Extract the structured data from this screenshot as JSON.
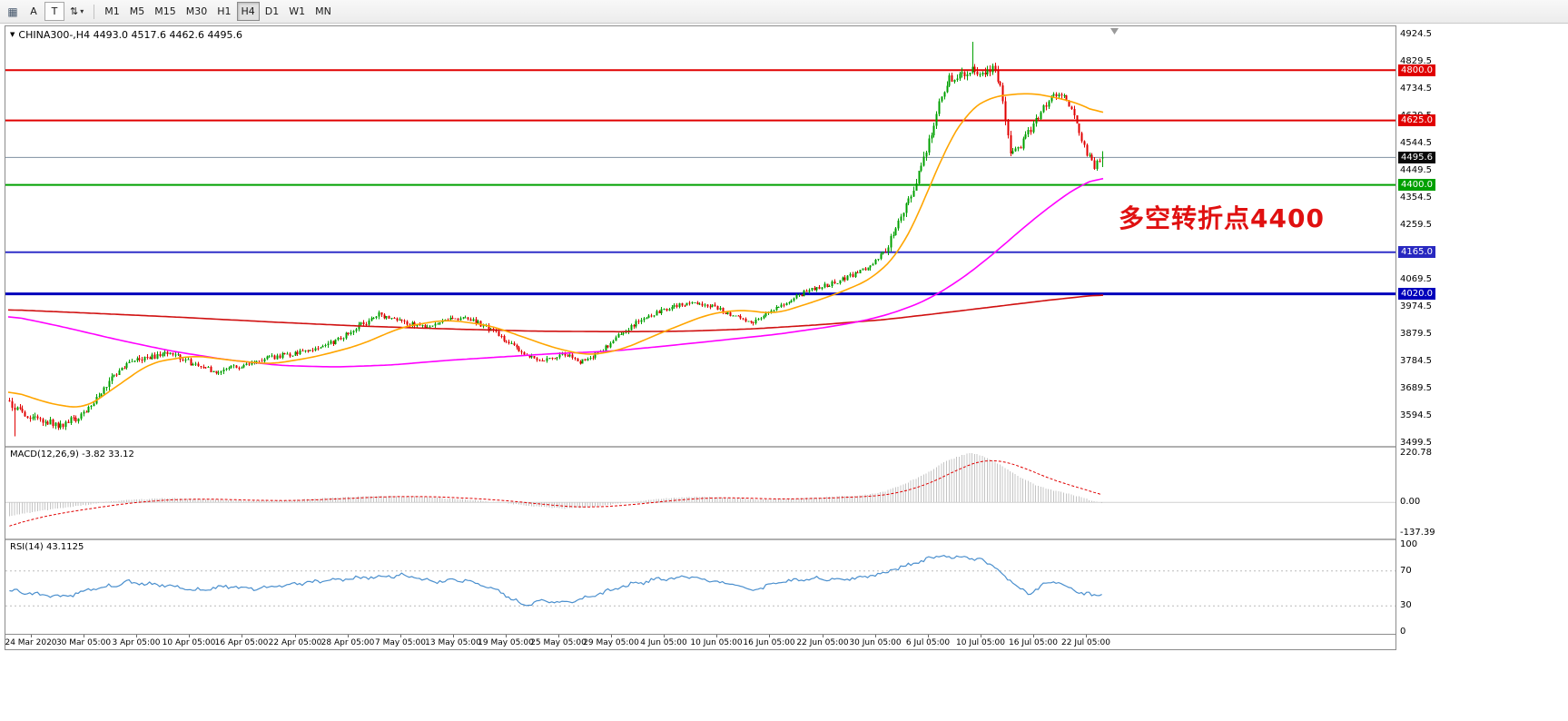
{
  "toolbar": {
    "chart_icon": "▦",
    "a_label": "A",
    "t_label": "T",
    "cycle_icon": "⇅",
    "chevron": "▾",
    "timeframes": [
      "M1",
      "M5",
      "M15",
      "M30",
      "H1",
      "H4",
      "D1",
      "W1",
      "MN"
    ],
    "active_timeframe": "H4"
  },
  "chart": {
    "collapse_arrow": "▼",
    "title": "CHINA300-,H4 4493.0 4517.6 4462.6 4495.6"
  },
  "chart_data": {
    "type": "candlestick",
    "symbol": "CHINA300-",
    "timeframe": "H4",
    "ohlc_current": {
      "open": 4493.0,
      "high": 4517.6,
      "low": 4462.6,
      "close": 4495.6
    },
    "candle_count": 430,
    "colors": {
      "up": "#00A000",
      "down": "#E00000",
      "ma_fast": "#FFA500",
      "ma_mid": "#FF00FF",
      "ma_slow": "#D01010",
      "macd_bar": "#c4c4c4",
      "macd_signal": "#e00000",
      "rsi_line": "#4a8fce"
    },
    "y_axis": {
      "max": 4924.5,
      "min": 3499.5,
      "tick_step": 95,
      "ticks": [
        4924.5,
        4829.5,
        4734.5,
        4639.5,
        4544.5,
        4449.5,
        4354.5,
        4259.5,
        4164.5,
        4069.5,
        3974.5,
        3879.5,
        3784.5,
        3689.5,
        3594.5,
        3499.5
      ]
    },
    "x_labels": [
      "24 Mar 2020",
      "30 Mar 05:00",
      "3 Apr 05:00",
      "10 Apr 05:00",
      "16 Apr 05:00",
      "22 Apr 05:00",
      "28 Apr 05:00",
      "7 May 05:00",
      "13 May 05:00",
      "19 May 05:00",
      "25 May 05:00",
      "29 May 05:00",
      "4 Jun 05:00",
      "10 Jun 05:00",
      "16 Jun 05:00",
      "22 Jun 05:00",
      "30 Jun 05:00",
      "6 Jul 05:00",
      "10 Jul 05:00",
      "16 Jul 05:00",
      "22 Jul 05:00"
    ],
    "levels": [
      {
        "price": 4800.0,
        "label": "4800.0",
        "color": "#e00000",
        "badge": "#e00000",
        "width": 2
      },
      {
        "price": 4625.0,
        "label": "4625.0",
        "color": "#e00000",
        "badge": "#e00000",
        "width": 2
      },
      {
        "price": 4495.6,
        "label": "4495.6",
        "color": "#7f8fa0",
        "badge": "#0a0a0a",
        "width": 1
      },
      {
        "price": 4400.0,
        "label": "4400.0",
        "color": "#00a000",
        "badge": "#00a000",
        "width": 2
      },
      {
        "price": 4165.0,
        "label": "4165.0",
        "color": "#3030c8",
        "badge": "#2828c0",
        "width": 2
      },
      {
        "price": 4020.0,
        "label": "4020.0",
        "color": "#0000bb",
        "badge": "#0000bb",
        "width": 3
      }
    ],
    "annotation": {
      "text": "多空转折点4400",
      "color": "#e01010"
    },
    "price_path_anchors": [
      [
        0.0,
        3648,
        26
      ],
      [
        0.012,
        3610,
        26
      ],
      [
        0.03,
        3585,
        26
      ],
      [
        0.048,
        3560,
        24
      ],
      [
        0.065,
        3590,
        22
      ],
      [
        0.08,
        3645,
        22
      ],
      [
        0.095,
        3720,
        22
      ],
      [
        0.11,
        3785,
        20
      ],
      [
        0.13,
        3800,
        18
      ],
      [
        0.15,
        3815,
        18
      ],
      [
        0.17,
        3775,
        18
      ],
      [
        0.19,
        3750,
        18
      ],
      [
        0.21,
        3765,
        16
      ],
      [
        0.23,
        3788,
        16
      ],
      [
        0.255,
        3808,
        16
      ],
      [
        0.28,
        3822,
        16
      ],
      [
        0.3,
        3855,
        18
      ],
      [
        0.32,
        3905,
        18
      ],
      [
        0.34,
        3948,
        18
      ],
      [
        0.36,
        3925,
        16
      ],
      [
        0.38,
        3905,
        16
      ],
      [
        0.4,
        3928,
        14
      ],
      [
        0.42,
        3938,
        14
      ],
      [
        0.44,
        3898,
        16
      ],
      [
        0.458,
        3852,
        16
      ],
      [
        0.475,
        3805,
        16
      ],
      [
        0.492,
        3788,
        14
      ],
      [
        0.508,
        3815,
        14
      ],
      [
        0.522,
        3782,
        14
      ],
      [
        0.54,
        3812,
        14
      ],
      [
        0.558,
        3872,
        16
      ],
      [
        0.575,
        3920,
        16
      ],
      [
        0.592,
        3952,
        14
      ],
      [
        0.61,
        3978,
        14
      ],
      [
        0.628,
        3992,
        14
      ],
      [
        0.645,
        3975,
        14
      ],
      [
        0.662,
        3945,
        14
      ],
      [
        0.68,
        3918,
        14
      ],
      [
        0.698,
        3962,
        14
      ],
      [
        0.715,
        3998,
        14
      ],
      [
        0.732,
        4032,
        16
      ],
      [
        0.75,
        4052,
        16
      ],
      [
        0.768,
        4078,
        16
      ],
      [
        0.785,
        4112,
        18
      ],
      [
        0.8,
        4158,
        22
      ],
      [
        0.812,
        4248,
        30
      ],
      [
        0.825,
        4368,
        32
      ],
      [
        0.838,
        4492,
        34
      ],
      [
        0.85,
        4668,
        34
      ],
      [
        0.86,
        4768,
        30
      ],
      [
        0.872,
        4788,
        32
      ],
      [
        0.882,
        4802,
        34
      ],
      [
        0.892,
        4772,
        32
      ],
      [
        0.9,
        4822,
        30
      ],
      [
        0.908,
        4732,
        32
      ],
      [
        0.916,
        4522,
        30
      ],
      [
        0.924,
        4528,
        26
      ],
      [
        0.934,
        4588,
        24
      ],
      [
        0.944,
        4655,
        24
      ],
      [
        0.953,
        4705,
        22
      ],
      [
        0.962,
        4718,
        22
      ],
      [
        0.97,
        4682,
        24
      ],
      [
        0.978,
        4598,
        24
      ],
      [
        0.986,
        4512,
        22
      ],
      [
        0.993,
        4465,
        20
      ],
      [
        1.0,
        4495.6,
        18
      ]
    ],
    "spikes": [
      {
        "t": 0.879,
        "high": 4899
      },
      {
        "t": 0.005,
        "low": 3524
      }
    ],
    "ma_fast": {
      "points": [
        [
          0.0,
          3685
        ],
        [
          0.04,
          3635
        ],
        [
          0.07,
          3620
        ],
        [
          0.1,
          3700
        ],
        [
          0.13,
          3780
        ],
        [
          0.17,
          3805
        ],
        [
          0.2,
          3790
        ],
        [
          0.24,
          3775
        ],
        [
          0.28,
          3800
        ],
        [
          0.32,
          3840
        ],
        [
          0.36,
          3905
        ],
        [
          0.4,
          3930
        ],
        [
          0.44,
          3910
        ],
        [
          0.47,
          3870
        ],
        [
          0.5,
          3830
        ],
        [
          0.53,
          3805
        ],
        [
          0.56,
          3825
        ],
        [
          0.6,
          3890
        ],
        [
          0.64,
          3950
        ],
        [
          0.67,
          3965
        ],
        [
          0.7,
          3950
        ],
        [
          0.73,
          3985
        ],
        [
          0.76,
          4025
        ],
        [
          0.79,
          4075
        ],
        [
          0.815,
          4170
        ],
        [
          0.835,
          4330
        ],
        [
          0.855,
          4520
        ],
        [
          0.875,
          4650
        ],
        [
          0.895,
          4705
        ],
        [
          0.915,
          4715
        ],
        [
          0.93,
          4720
        ],
        [
          0.945,
          4715
        ],
        [
          0.96,
          4700
        ],
        [
          0.975,
          4690
        ],
        [
          0.99,
          4660
        ],
        [
          1.0,
          4642
        ]
      ]
    },
    "ma_mid": {
      "points": [
        [
          0.0,
          3945
        ],
        [
          0.05,
          3905
        ],
        [
          0.1,
          3860
        ],
        [
          0.15,
          3820
        ],
        [
          0.2,
          3790
        ],
        [
          0.25,
          3770
        ],
        [
          0.3,
          3765
        ],
        [
          0.35,
          3772
        ],
        [
          0.4,
          3788
        ],
        [
          0.45,
          3800
        ],
        [
          0.5,
          3812
        ],
        [
          0.55,
          3820
        ],
        [
          0.6,
          3838
        ],
        [
          0.65,
          3858
        ],
        [
          0.7,
          3878
        ],
        [
          0.75,
          3905
        ],
        [
          0.78,
          3925
        ],
        [
          0.81,
          3955
        ],
        [
          0.84,
          4000
        ],
        [
          0.87,
          4070
        ],
        [
          0.9,
          4160
        ],
        [
          0.93,
          4260
        ],
        [
          0.96,
          4350
        ],
        [
          0.98,
          4400
        ],
        [
          1.0,
          4432
        ]
      ]
    },
    "ma_slow": {
      "points": [
        [
          0.0,
          3965
        ],
        [
          0.08,
          3952
        ],
        [
          0.16,
          3938
        ],
        [
          0.24,
          3922
        ],
        [
          0.32,
          3908
        ],
        [
          0.4,
          3898
        ],
        [
          0.48,
          3890
        ],
        [
          0.56,
          3888
        ],
        [
          0.62,
          3890
        ],
        [
          0.68,
          3898
        ],
        [
          0.74,
          3912
        ],
        [
          0.8,
          3930
        ],
        [
          0.85,
          3952
        ],
        [
          0.9,
          3975
        ],
        [
          0.95,
          3998
        ],
        [
          1.0,
          4018
        ]
      ]
    },
    "macd": {
      "label": "MACD(12,26,9) -3.82 33.12",
      "main_last": -3.82,
      "signal_last": 33.12,
      "range": {
        "max": 220.78,
        "min": -137.39
      },
      "ticks": [
        "220.78",
        "0.00",
        "-137.39"
      ],
      "signal_seed": -110,
      "signal_alpha": 0.08,
      "main_anchors": [
        [
          0.0,
          -62
        ],
        [
          0.02,
          -45
        ],
        [
          0.04,
          -30
        ],
        [
          0.07,
          -12
        ],
        [
          0.1,
          8
        ],
        [
          0.14,
          18
        ],
        [
          0.18,
          14
        ],
        [
          0.22,
          6
        ],
        [
          0.26,
          10
        ],
        [
          0.3,
          22
        ],
        [
          0.34,
          30
        ],
        [
          0.38,
          24
        ],
        [
          0.42,
          12
        ],
        [
          0.45,
          0
        ],
        [
          0.48,
          -18
        ],
        [
          0.51,
          -28
        ],
        [
          0.54,
          -16
        ],
        [
          0.57,
          2
        ],
        [
          0.6,
          18
        ],
        [
          0.63,
          26
        ],
        [
          0.66,
          20
        ],
        [
          0.69,
          12
        ],
        [
          0.72,
          18
        ],
        [
          0.75,
          24
        ],
        [
          0.78,
          32
        ],
        [
          0.8,
          48
        ],
        [
          0.82,
          85
        ],
        [
          0.84,
          135
        ],
        [
          0.855,
          180
        ],
        [
          0.87,
          210
        ],
        [
          0.878,
          221
        ],
        [
          0.888,
          212
        ],
        [
          0.9,
          185
        ],
        [
          0.912,
          150
        ],
        [
          0.925,
          110
        ],
        [
          0.94,
          75
        ],
        [
          0.95,
          58
        ],
        [
          0.96,
          48
        ],
        [
          0.97,
          38
        ],
        [
          0.98,
          22
        ],
        [
          0.99,
          8
        ],
        [
          1.0,
          -3.82
        ]
      ]
    },
    "rsi": {
      "label": "RSI(14) 43.1125",
      "last": 43.1125,
      "ticks": [
        "100",
        "70",
        "30",
        "0"
      ],
      "level_lines": [
        70,
        30
      ],
      "anchors": [
        [
          0.0,
          48
        ],
        [
          0.02,
          44
        ],
        [
          0.05,
          40
        ],
        [
          0.08,
          50
        ],
        [
          0.11,
          57
        ],
        [
          0.14,
          54
        ],
        [
          0.17,
          48
        ],
        [
          0.2,
          52
        ],
        [
          0.23,
          50
        ],
        [
          0.26,
          55
        ],
        [
          0.3,
          60
        ],
        [
          0.33,
          63
        ],
        [
          0.36,
          65
        ],
        [
          0.39,
          58
        ],
        [
          0.42,
          60
        ],
        [
          0.45,
          45
        ],
        [
          0.47,
          32
        ],
        [
          0.49,
          35
        ],
        [
          0.51,
          33
        ],
        [
          0.53,
          40
        ],
        [
          0.56,
          52
        ],
        [
          0.59,
          60
        ],
        [
          0.62,
          63
        ],
        [
          0.64,
          60
        ],
        [
          0.66,
          55
        ],
        [
          0.68,
          48
        ],
        [
          0.7,
          55
        ],
        [
          0.72,
          60
        ],
        [
          0.74,
          62
        ],
        [
          0.76,
          60
        ],
        [
          0.78,
          63
        ],
        [
          0.8,
          68
        ],
        [
          0.82,
          76
        ],
        [
          0.84,
          84
        ],
        [
          0.852,
          88
        ],
        [
          0.862,
          84
        ],
        [
          0.872,
          87
        ],
        [
          0.882,
          82
        ],
        [
          0.89,
          84
        ],
        [
          0.9,
          75
        ],
        [
          0.91,
          65
        ],
        [
          0.92,
          55
        ],
        [
          0.925,
          48
        ],
        [
          0.932,
          44
        ],
        [
          0.94,
          50
        ],
        [
          0.948,
          55
        ],
        [
          0.955,
          58
        ],
        [
          0.962,
          56
        ],
        [
          0.968,
          52
        ],
        [
          0.975,
          48
        ],
        [
          0.982,
          44
        ],
        [
          0.99,
          42
        ],
        [
          1.0,
          43.11
        ]
      ]
    }
  }
}
